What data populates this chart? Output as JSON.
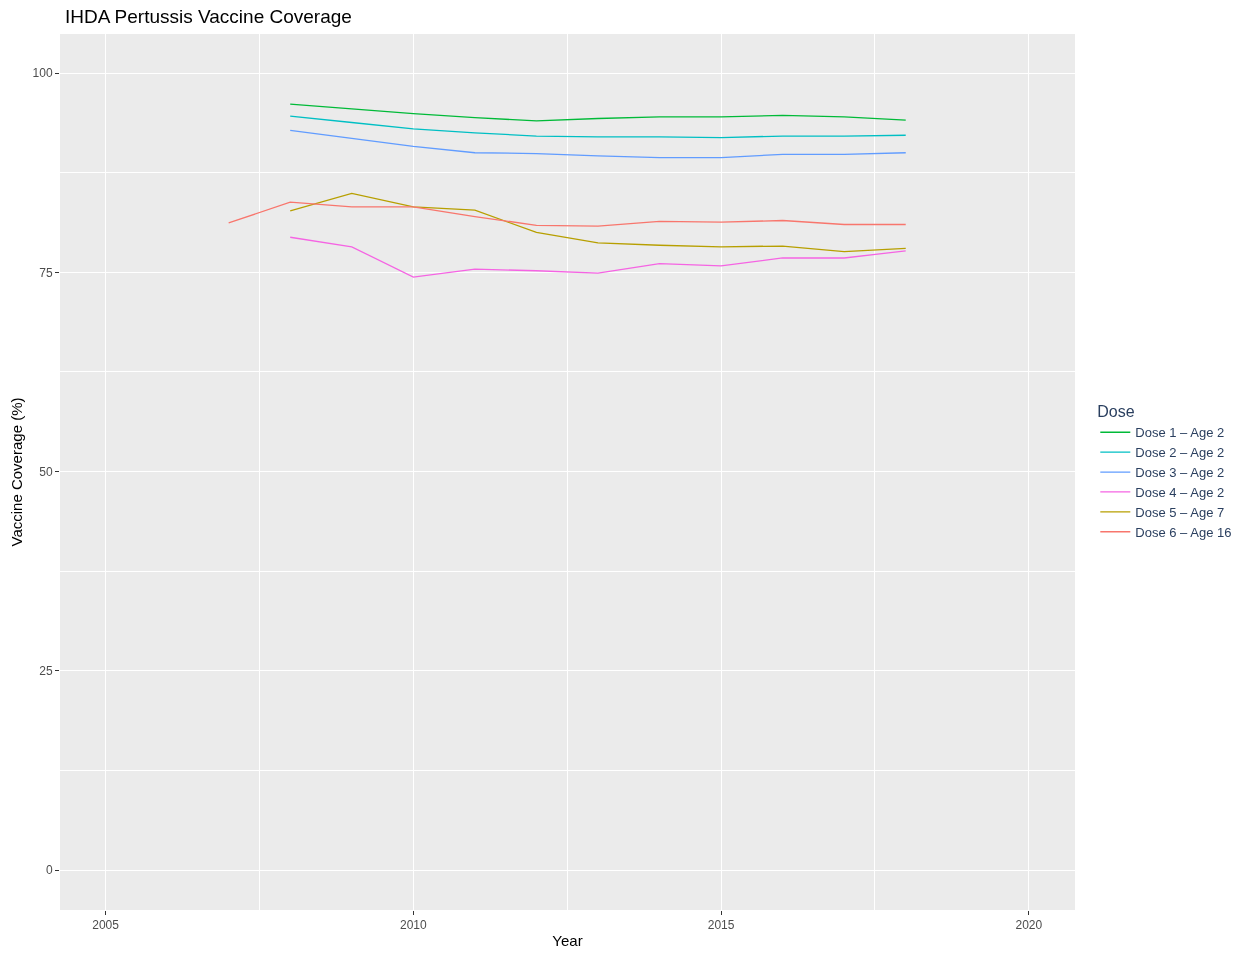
{
  "chart_data": {
    "type": "line",
    "title": "IHDA Pertussis Vaccine Coverage",
    "xlabel": "Year",
    "ylabel": "Vaccine Coverage (%)",
    "legend_title": "Dose",
    "x": [
      2008,
      2009,
      2010,
      2011,
      2012,
      2013,
      2014,
      2015,
      2016,
      2017,
      2018
    ],
    "series": [
      {
        "name": "Dose 1 – Age 2",
        "color": "#00ba38",
        "values": [
          96.1,
          95.5,
          94.9,
          94.4,
          94.0,
          94.3,
          94.5,
          94.5,
          94.7,
          94.5,
          94.1
        ]
      },
      {
        "name": "Dose 2 – Age 2",
        "color": "#00bfc4",
        "values": [
          94.6,
          93.8,
          93.0,
          92.5,
          92.1,
          92.0,
          92.0,
          91.9,
          92.1,
          92.1,
          92.2
        ]
      },
      {
        "name": "Dose 3 – Age 2",
        "color": "#619cff",
        "values": [
          92.8,
          91.8,
          90.8,
          90.0,
          89.9,
          89.6,
          89.4,
          89.4,
          89.8,
          89.8,
          90.0
        ]
      },
      {
        "name": "Dose 4 – Age 2",
        "color": "#f564e3",
        "values": [
          79.4,
          78.2,
          74.4,
          75.4,
          75.2,
          74.9,
          76.1,
          75.8,
          76.8,
          76.8,
          77.7
        ]
      },
      {
        "name": "Dose 5 – Age 7",
        "color": "#b79f00",
        "values": [
          82.7,
          84.9,
          83.2,
          82.8,
          80.0,
          78.7,
          78.4,
          78.2,
          78.3,
          77.6,
          78.0
        ]
      },
      {
        "name": "Dose 6 – Age 16",
        "color": "#f8766d",
        "x": [
          2007,
          2008,
          2009,
          2010,
          2011,
          2012,
          2013,
          2014,
          2015,
          2016,
          2017,
          2018
        ],
        "values": [
          81.2,
          83.8,
          83.2,
          83.2,
          82.0,
          80.9,
          80.8,
          81.4,
          81.3,
          81.5,
          81.0,
          81.0
        ]
      }
    ],
    "xlim": [
      2004.26,
      2020.75
    ],
    "xticks": [
      2005,
      2010,
      2015,
      2020
    ],
    "ylim": [
      -5,
      104.9
    ],
    "yticks": [
      0,
      25,
      50,
      75,
      100
    ],
    "grid": true,
    "legend": "right",
    "marker": "none",
    "line_style": "solid"
  }
}
